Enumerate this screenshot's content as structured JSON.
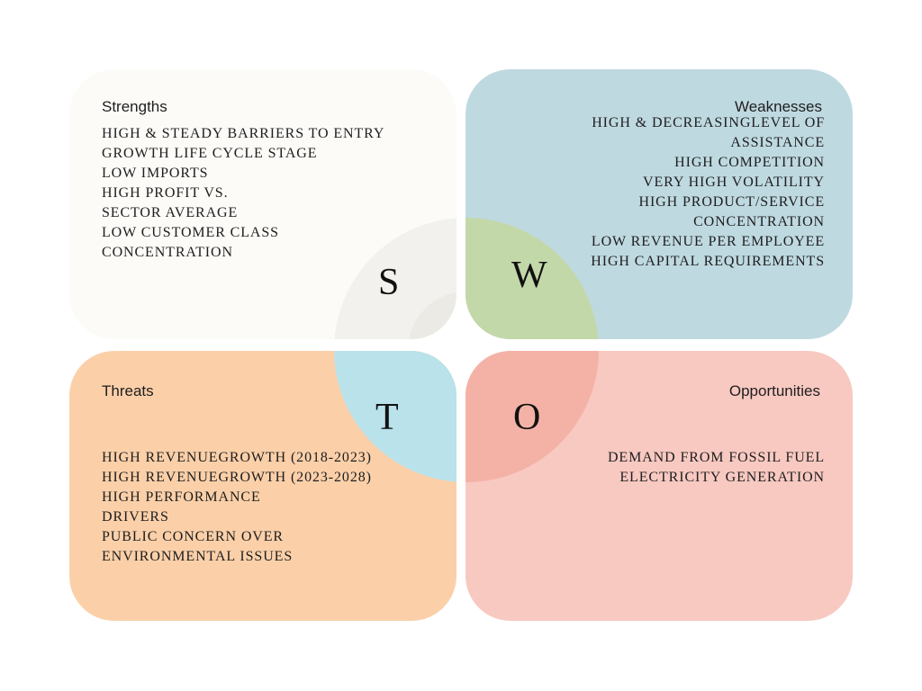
{
  "strengths": {
    "title": "Strengths",
    "letter": "S",
    "items": [
      "HIGH & STEADY BARRIERS TO ENTRY",
      "GROWTH LIFE CYCLE STAGE",
      "LOW IMPORTS",
      "HIGH PROFIT VS.",
      "SECTOR AVERAGE",
      "LOW CUSTOMER CLASS",
      "CONCENTRATION"
    ]
  },
  "weaknesses": {
    "title": "Weaknesses",
    "letter": "W",
    "items": [
      "HIGH & DECREASINGLEVEL OF",
      "ASSISTANCE",
      "HIGH COMPETITION",
      "VERY HIGH VOLATILITY",
      "HIGH PRODUCT/SERVICE",
      "CONCENTRATION",
      "LOW REVENUE PER EMPLOYEE",
      "HIGH CAPITAL REQUIREMENTS"
    ]
  },
  "threats": {
    "title": "Threats",
    "letter": "T",
    "items": [
      "HIGH REVENUEGROWTH (2018-2023)",
      "HIGH REVENUEGROWTH (2023-2028)",
      "HIGH PERFORMANCE",
      "DRIVERS",
      "PUBLIC CONCERN OVER",
      "ENVIRONMENTAL ISSUES"
    ]
  },
  "opportunities": {
    "title": "Opportunities",
    "letter": "O",
    "items": [
      "DEMAND FROM FOSSIL FUEL",
      "ELECTRICITY GENERATION"
    ]
  },
  "colors": {
    "strengths": "#fcfbf8",
    "weaknesses": "#bfd9e1",
    "threats": "#fbd0a9",
    "opportunities": "#f8c9c1",
    "center_w": "#c3d8a9",
    "center_t": "#b9e2ea",
    "center_o": "#f4b2a6"
  }
}
